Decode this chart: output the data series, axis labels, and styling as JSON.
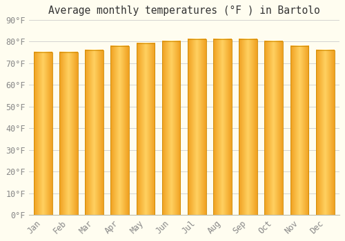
{
  "title": "Average monthly temperatures (°F ) in Bartolo",
  "months": [
    "Jan",
    "Feb",
    "Mar",
    "Apr",
    "May",
    "Jun",
    "Jul",
    "Aug",
    "Sep",
    "Oct",
    "Nov",
    "Dec"
  ],
  "values": [
    75,
    75,
    76,
    78,
    79,
    80,
    81,
    81,
    81,
    80,
    78,
    76
  ],
  "bar_color_center": "#FFD060",
  "bar_color_edge": "#F0A020",
  "bar_outline_color": "#CC8800",
  "background_color": "#FFFDF0",
  "grid_color": "#CCCCCC",
  "text_color": "#888888",
  "ylim": [
    0,
    90
  ],
  "yticks": [
    0,
    10,
    20,
    30,
    40,
    50,
    60,
    70,
    80,
    90
  ],
  "title_fontsize": 10.5,
  "tick_fontsize": 8.5,
  "bar_width": 0.72
}
